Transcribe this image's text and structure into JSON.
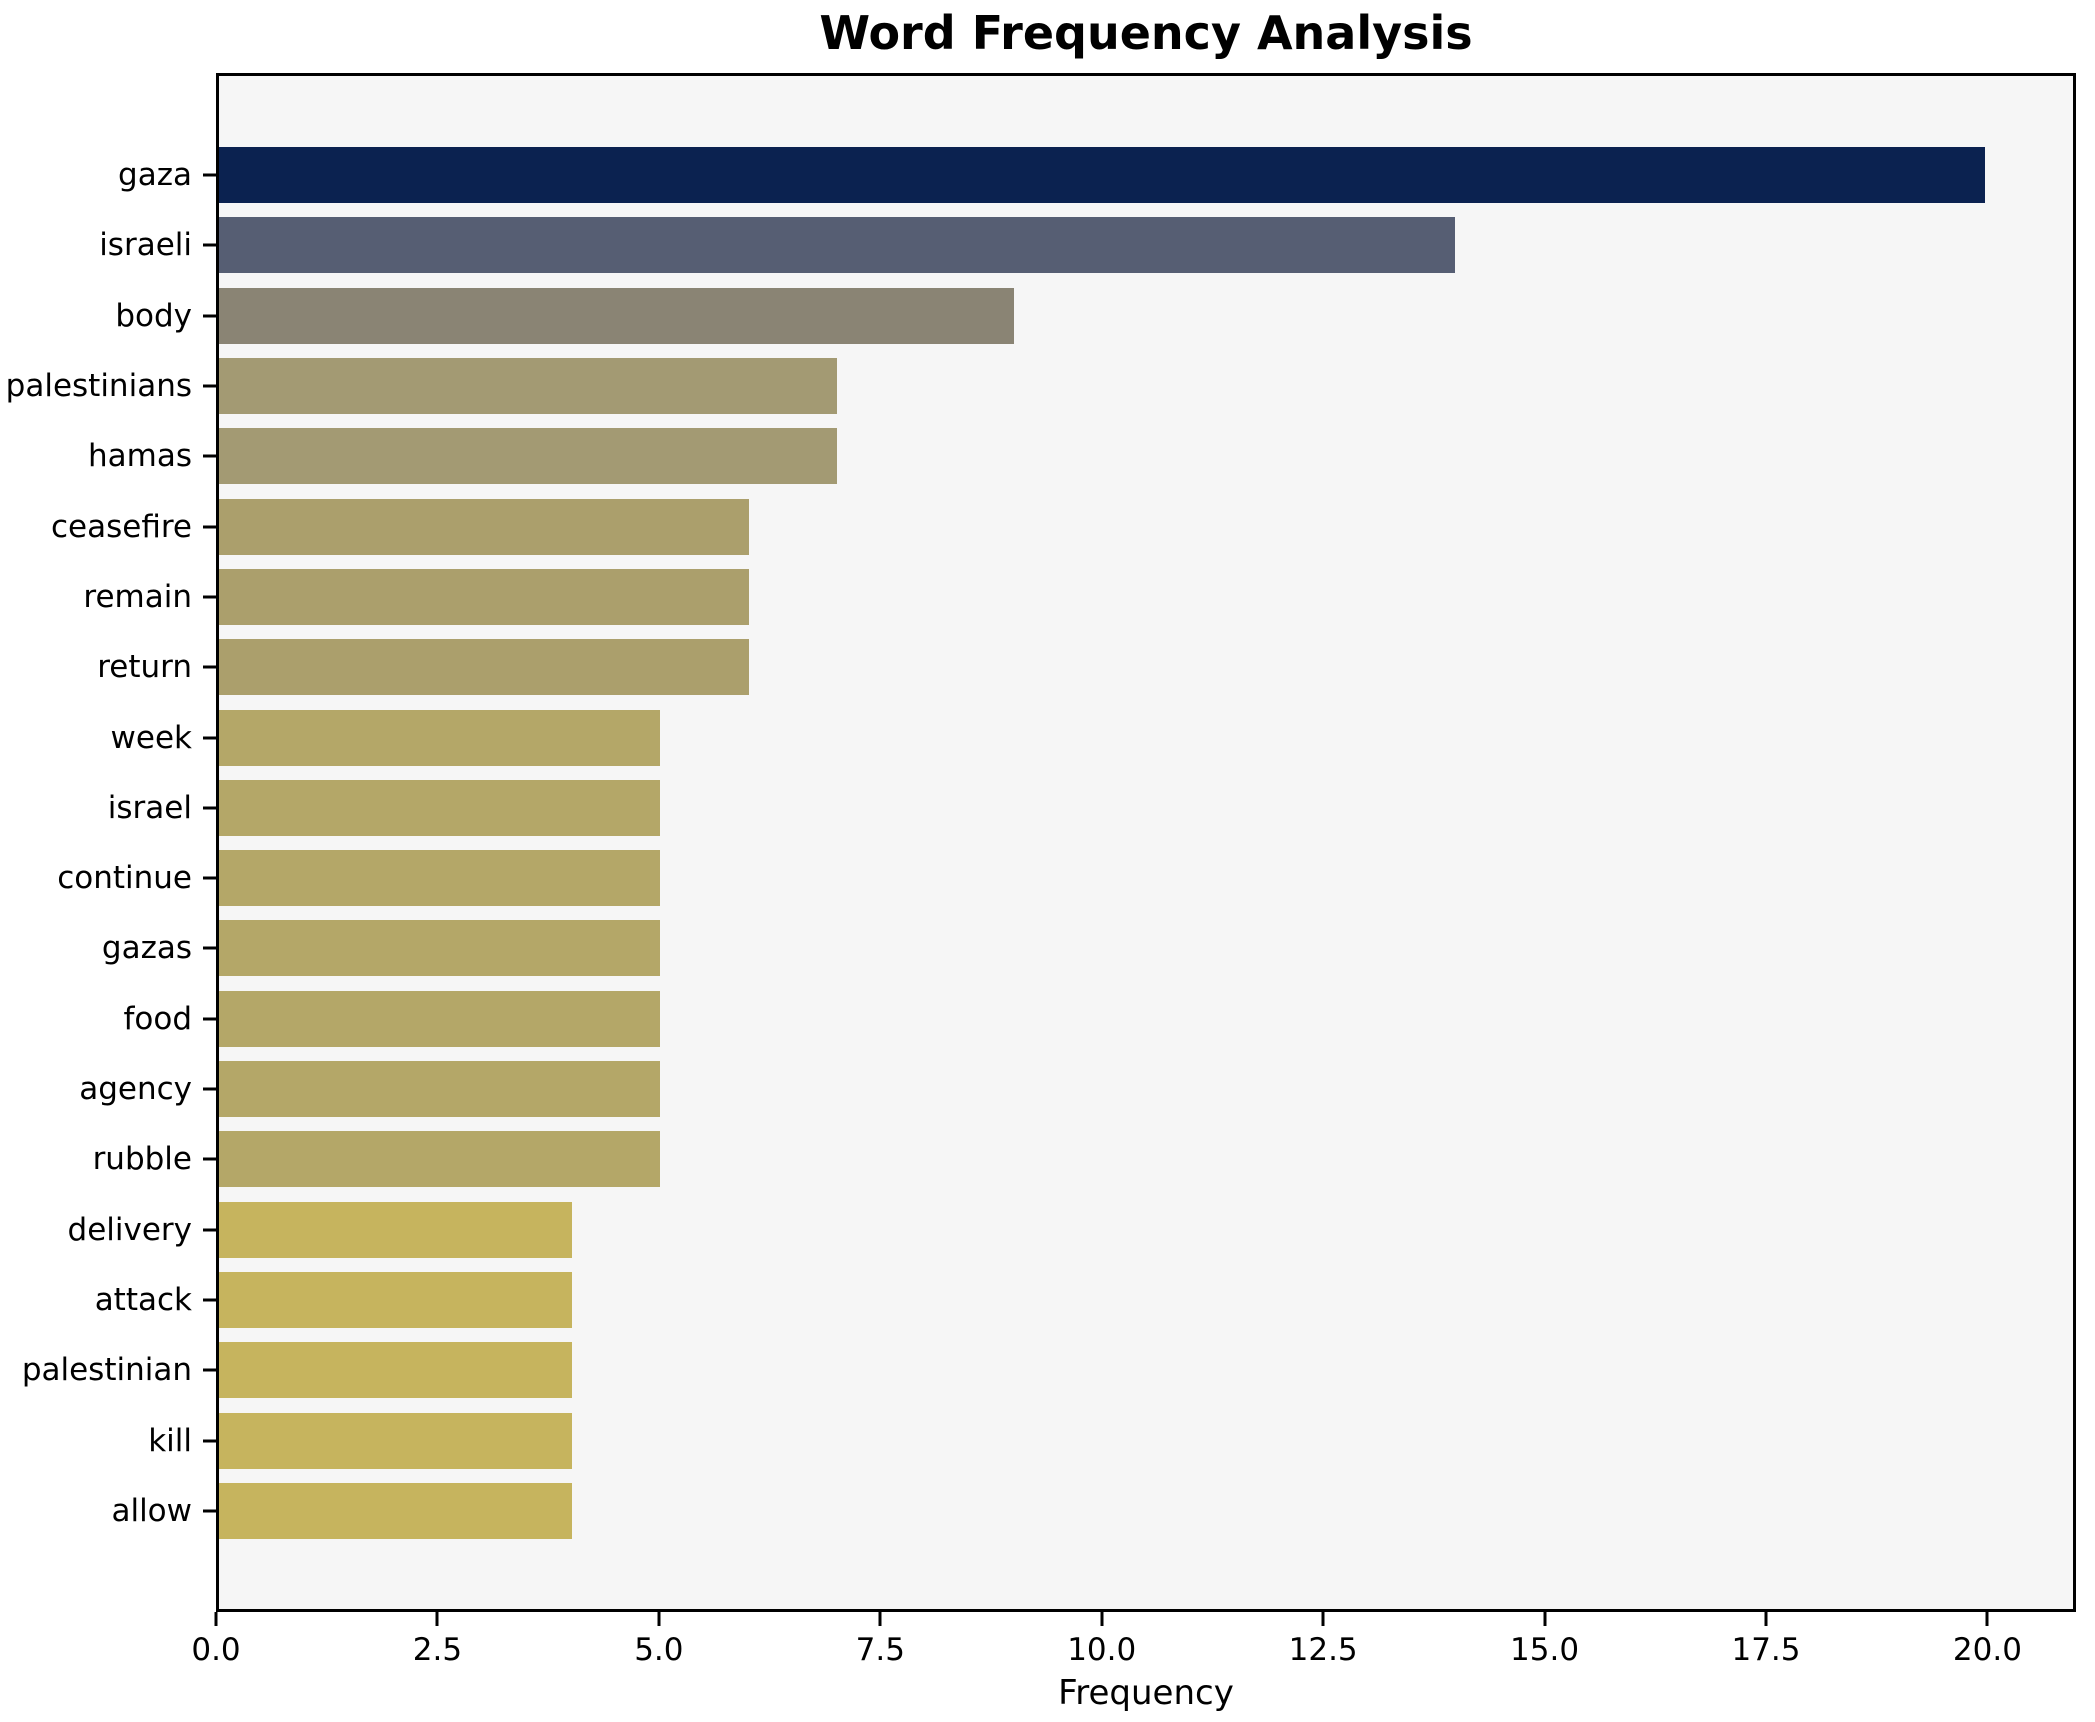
{
  "chart": {
    "title": "Word Frequency Analysis",
    "xlabel": "Frequency"
  },
  "chart_data": {
    "type": "bar",
    "orientation": "horizontal",
    "title": "Word Frequency Analysis",
    "xlabel": "Frequency",
    "ylabel": "",
    "xlim": [
      0,
      21
    ],
    "x_ticks": [
      "0.0",
      "2.5",
      "5.0",
      "7.5",
      "10.0",
      "12.5",
      "15.0",
      "17.5",
      "20.0"
    ],
    "x_tick_values": [
      0,
      2.5,
      5,
      7.5,
      10,
      12.5,
      15,
      17.5,
      20
    ],
    "grid": false,
    "legend": "none",
    "plot_background": "#f6f6f6",
    "categories": [
      "gaza",
      "israeli",
      "body",
      "palestinians",
      "hamas",
      "ceasefire",
      "remain",
      "return",
      "week",
      "israel",
      "continue",
      "gazas",
      "food",
      "agency",
      "rubble",
      "delivery",
      "attack",
      "palestinian",
      "kill",
      "allow"
    ],
    "values": [
      20,
      14,
      9,
      7,
      7,
      6,
      6,
      6,
      5,
      5,
      5,
      5,
      5,
      5,
      5,
      4,
      4,
      4,
      4,
      4
    ],
    "bar_colors": [
      "#0b2250",
      "#565e73",
      "#8a8474",
      "#a39a73",
      "#a39a73",
      "#ab9f6c",
      "#ab9f6c",
      "#ab9f6c",
      "#b4a768",
      "#b4a768",
      "#b4a768",
      "#b4a768",
      "#b4a768",
      "#b4a768",
      "#b4a768",
      "#c6b45e",
      "#c6b45e",
      "#c6b45e",
      "#c6b45e",
      "#c6b45e"
    ]
  },
  "colors": {
    "figure_background": "#ffffff",
    "plot_background": "#f6f6f6",
    "axis_line": "#000000",
    "text": "#000000",
    "color_max": "#0b2250",
    "color_min": "#c6b45e"
  }
}
